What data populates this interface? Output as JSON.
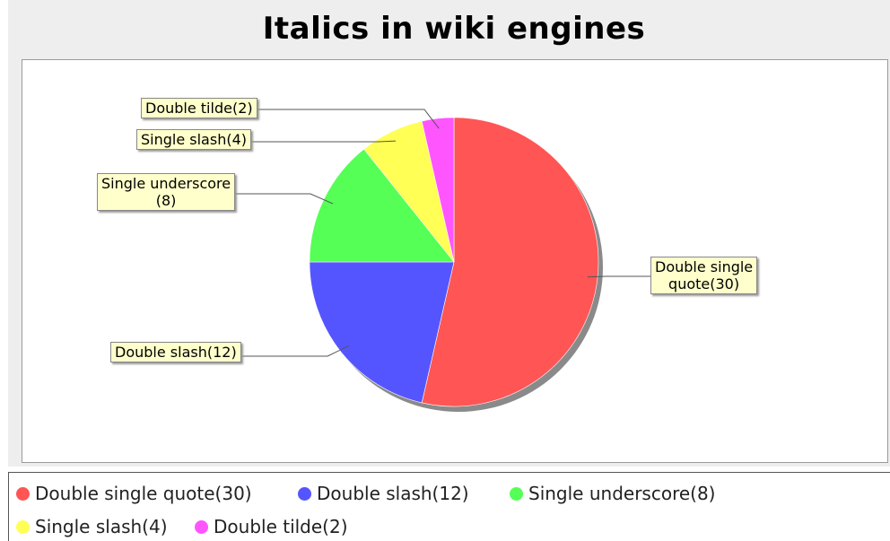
{
  "chart_data": {
    "type": "pie",
    "title": "Italics in wiki engines",
    "slices": [
      {
        "name": "Double single quote",
        "value": 30,
        "label": "Double single quote(30)",
        "label_lines": [
          "Double single",
          "quote(30)"
        ],
        "color": "#ff5555"
      },
      {
        "name": "Double slash",
        "value": 12,
        "label": "Double slash(12)",
        "label_lines": [
          "Double slash(12)"
        ],
        "color": "#5555ff"
      },
      {
        "name": "Single underscore",
        "value": 8,
        "label": "Single underscore(8)",
        "label_lines": [
          "Single underscore",
          "(8)"
        ],
        "color": "#55ff55"
      },
      {
        "name": "Single slash",
        "value": 4,
        "label": "Single slash(4)",
        "label_lines": [
          "Single slash(4)"
        ],
        "color": "#ffff55"
      },
      {
        "name": "Double tilde",
        "value": 2,
        "label": "Double tilde(2)",
        "label_lines": [
          "Double tilde(2)"
        ],
        "color": "#ff55ff"
      }
    ],
    "legend_position": "bottom"
  },
  "legend": {
    "items": [
      "Double single quote(30)",
      "Double slash(12)",
      "Single underscore(8)",
      "Single slash(4)",
      "Double tilde(2)"
    ]
  }
}
